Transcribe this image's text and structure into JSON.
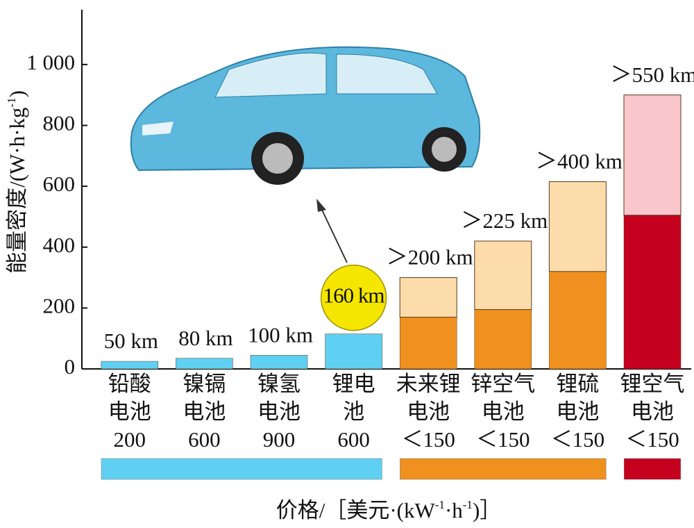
{
  "chart_data": {
    "type": "stacked_bar",
    "y_label": [
      "能量密度/(W·h·kg",
      "-1",
      ")"
    ],
    "x_label": [
      "价格/［美元·(kW",
      "-1",
      "·h",
      "-1",
      ")］"
    ],
    "categories": [
      [
        "铅酸",
        "电池"
      ],
      [
        "镍镉",
        "电池"
      ],
      [
        "镍氢",
        "电池"
      ],
      [
        "锂电",
        "池"
      ],
      [
        "未来锂",
        "电池"
      ],
      [
        "锌空气",
        "电池"
      ],
      [
        "锂硫",
        "电池"
      ],
      [
        "锂空气",
        "电池"
      ]
    ],
    "prices": [
      "200",
      "600",
      "900",
      "600",
      "＜150",
      "＜150",
      "＜150",
      "＜150"
    ],
    "range_labels": [
      "50 km",
      "80 km",
      "100 km",
      "160 km",
      "＞200 km",
      "＞225 km",
      "＞400 km",
      "＞550 km"
    ],
    "highlight": 3,
    "series": [
      {
        "colors": [
          "#5fd0f2",
          "#5fd0f2",
          "#5fd0f2",
          "#5fd0f2",
          "#f0901e",
          "#f0901e",
          "#f0901e",
          "#c4001e"
        ],
        "values": [
          25,
          35,
          45,
          115,
          170,
          195,
          320,
          505
        ]
      },
      {
        "colors": [
          null,
          null,
          null,
          null,
          "#fcdcaa",
          "#fcdcaa",
          "#fcdcaa",
          "#f9c6cb"
        ],
        "values": [
          null,
          null,
          null,
          null,
          130,
          225,
          295,
          395
        ]
      }
    ],
    "ylim": [
      0,
      1180
    ],
    "yticks": [
      0,
      200,
      400,
      600,
      800,
      {
        "value": 1000,
        "label": "1 000"
      }
    ]
  }
}
